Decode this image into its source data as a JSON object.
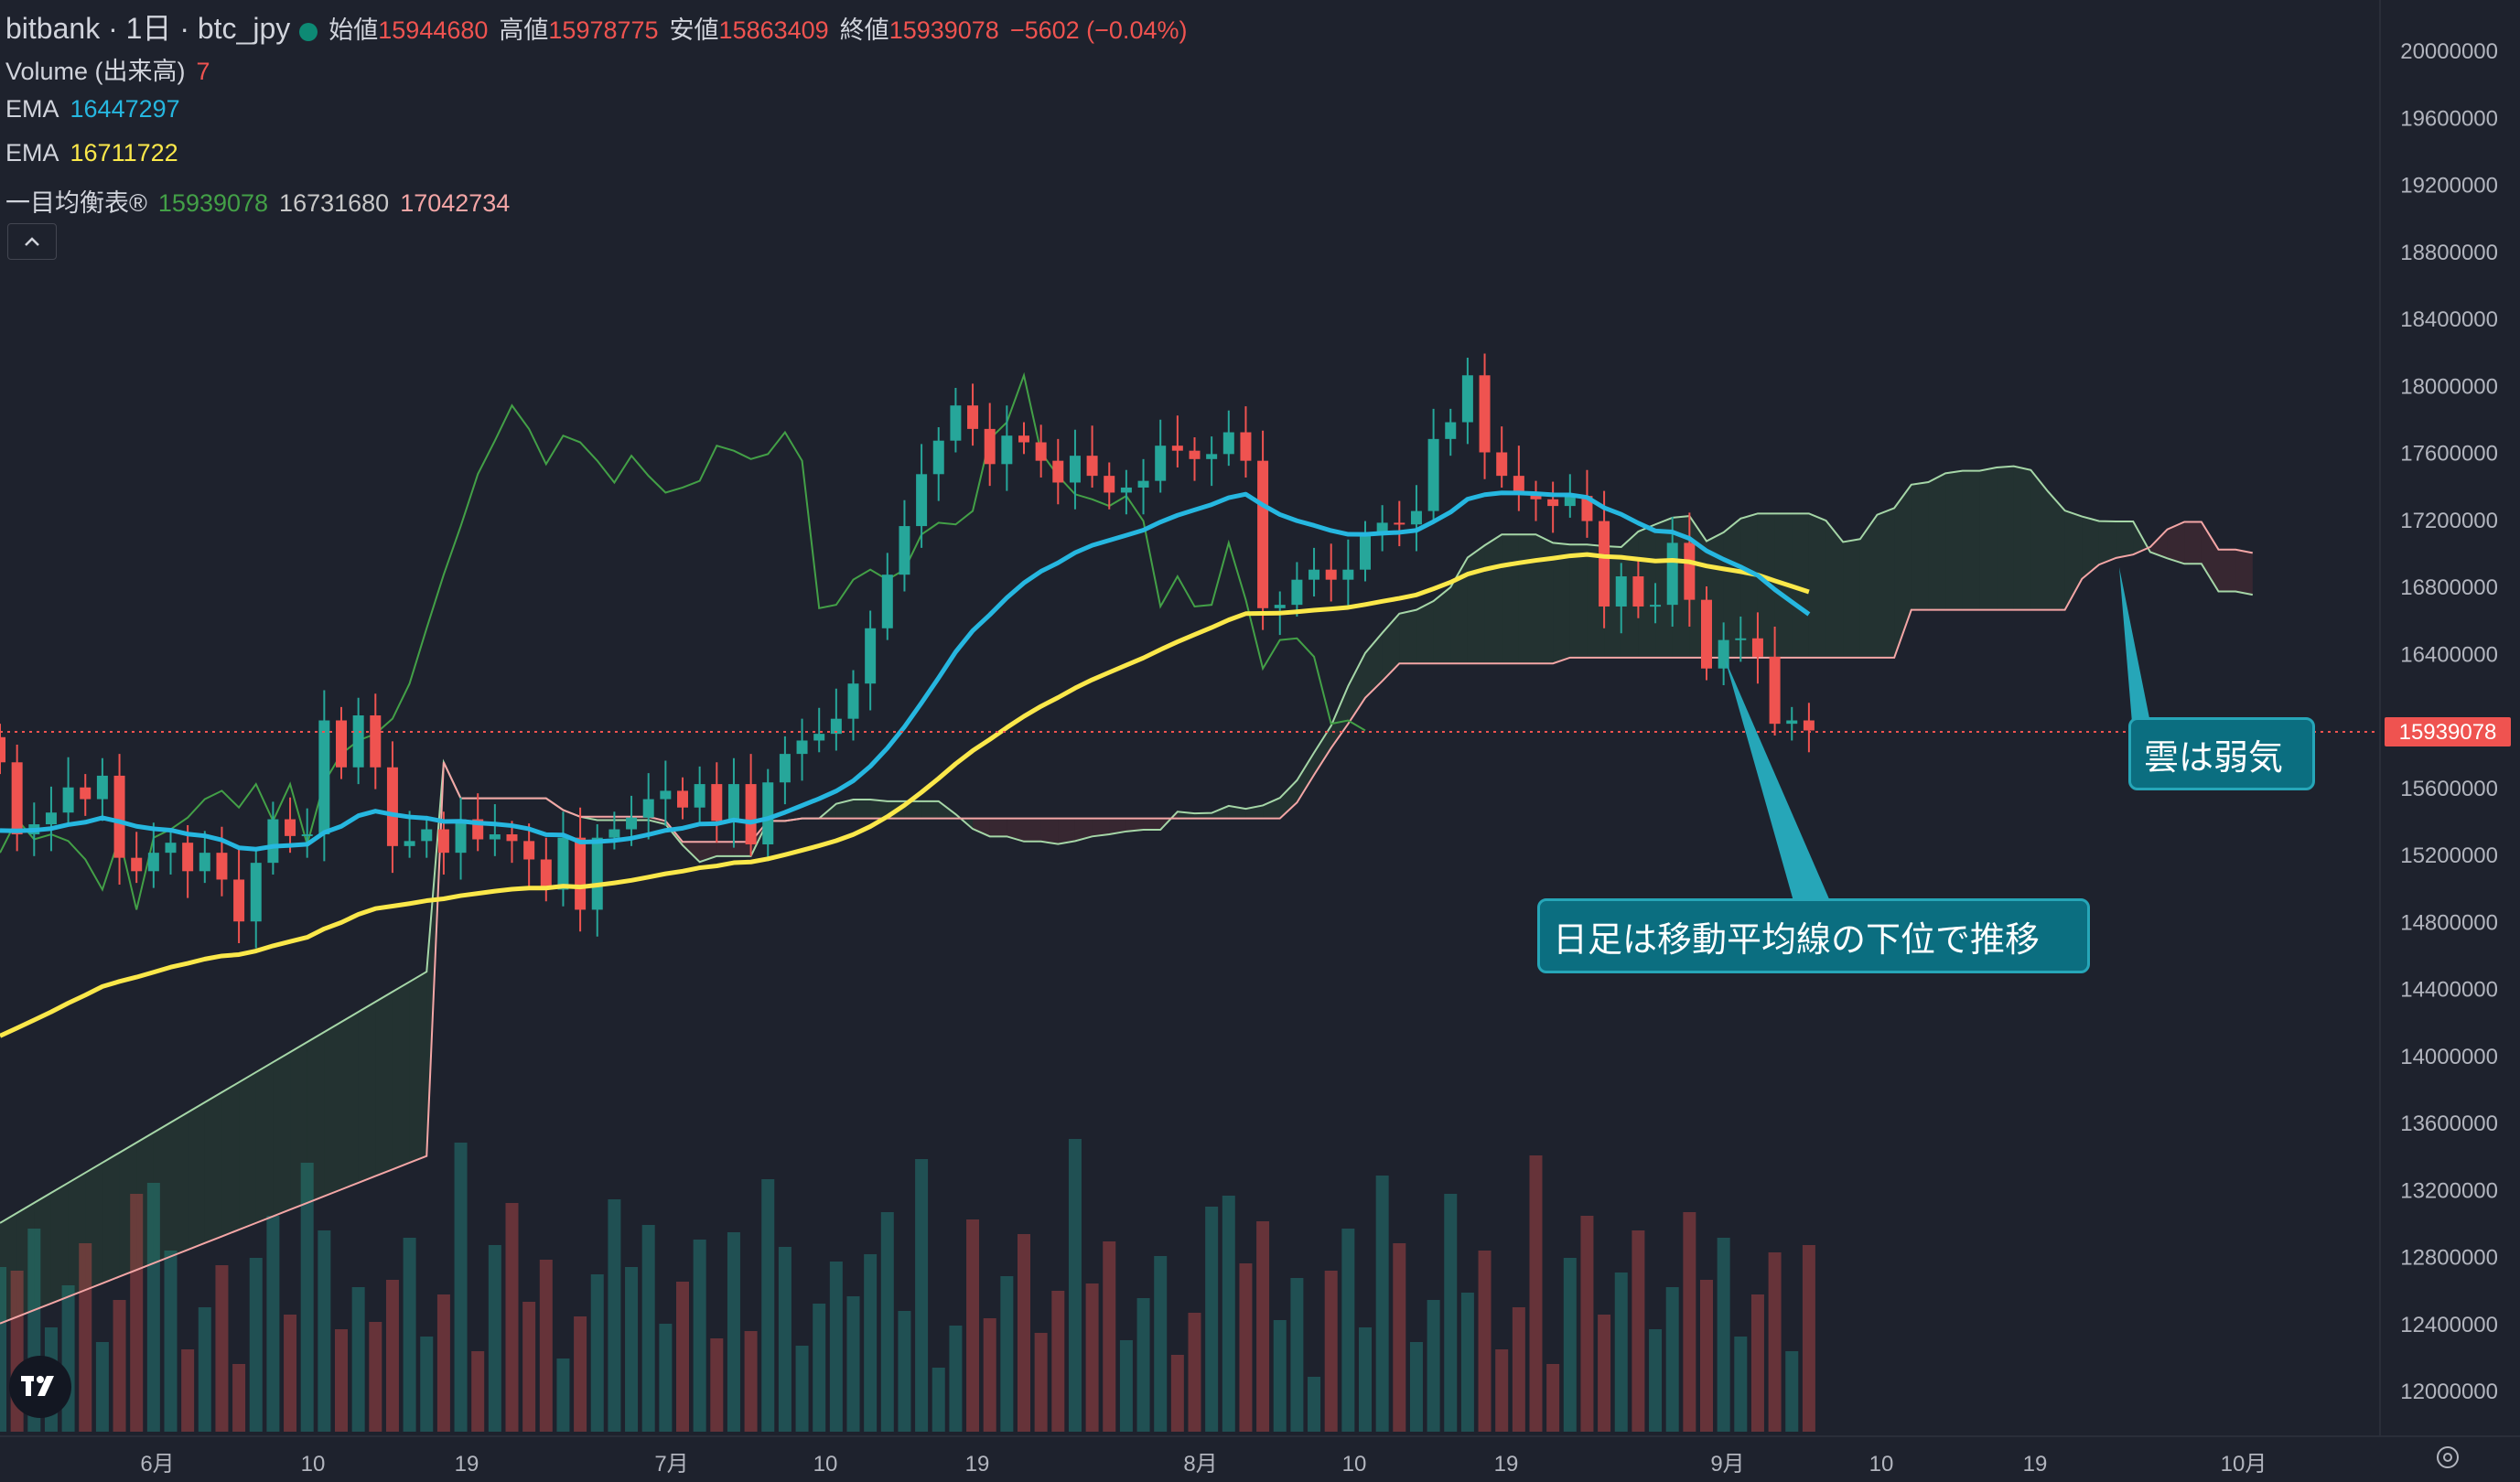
{
  "header": {
    "symbol": "bitbank · 1日 · btc_jpy",
    "open_label": "始値",
    "open": "15944680",
    "high_label": "高値",
    "high": "15978775",
    "low_label": "安値",
    "low": "15863409",
    "close_label": "終値",
    "close": "15939078",
    "change": "−5602 (−0.04%)"
  },
  "indicators": {
    "volume_label": "Volume (出来高)",
    "volume_value": "7",
    "ema1_label": "EMA",
    "ema1_value": "16447297",
    "ema2_label": "EMA",
    "ema2_value": "16711722",
    "ichimoku_label": "一目均衡表®",
    "ichimoku_v1": "15939078",
    "ichimoku_v2": "16731680",
    "ichimoku_v3": "17042734"
  },
  "annotations": {
    "cloud": "雲は弱気",
    "daily": "日足は移動平均線の下位で推移"
  },
  "price_tag": "15939078",
  "colors": {
    "up": "#26a69a",
    "down": "#ef5350",
    "ema_fast": "#26b7e0",
    "ema_slow": "#fbe84a",
    "background": "#1e222d"
  },
  "chart_data": {
    "type": "candlestick",
    "y_ticks": [
      "20000000",
      "19600000",
      "19200000",
      "18800000",
      "18400000",
      "18000000",
      "17600000",
      "17200000",
      "16800000",
      "16400000",
      "16000000",
      "15600000",
      "15200000",
      "14800000",
      "14400000",
      "14000000",
      "13600000",
      "13200000",
      "12800000",
      "12400000",
      "12000000"
    ],
    "x_ticks": [
      "6月",
      "10",
      "19",
      "7月",
      "10",
      "19",
      "8月",
      "10",
      "19",
      "9月",
      "10",
      "19",
      "10月"
    ],
    "ylim": [
      11800000,
      20200000
    ],
    "close": [
      15750000,
      15320000,
      15380000,
      15450000,
      15600000,
      15530000,
      15670000,
      15180000,
      15100000,
      15210000,
      15270000,
      15100000,
      15210000,
      15050000,
      14800000,
      15150000,
      15410000,
      15310000,
      15320000,
      16000000,
      15720000,
      16030000,
      15720000,
      15250000,
      15280000,
      15350000,
      15210000,
      15410000,
      15290000,
      15320000,
      15280000,
      15170000,
      14990000,
      15300000,
      14870000,
      15300000,
      15350000,
      15420000,
      15530000,
      15580000,
      15480000,
      15620000,
      15400000,
      15620000,
      15260000,
      15630000,
      15800000,
      15880000,
      15920000,
      16010000,
      16220000,
      16550000,
      16870000,
      17160000,
      17470000,
      17670000,
      17880000,
      17740000,
      17530000,
      17700000,
      17660000,
      17550000,
      17420000,
      17580000,
      17460000,
      17360000,
      17390000,
      17430000,
      17640000,
      17610000,
      17560000,
      17590000,
      17720000,
      17550000,
      16670000,
      16690000,
      16840000,
      16900000,
      16840000,
      16900000,
      17110000,
      17180000,
      17170000,
      17250000,
      17680000,
      17780000,
      18060000,
      17600000,
      17460000,
      17350000,
      17320000,
      17280000,
      17340000,
      17190000,
      16680000,
      16860000,
      16680000,
      16690000,
      17060000,
      16720000,
      16310000,
      16480000,
      16490000,
      16380000,
      15980000,
      16000000,
      15940000
    ],
    "ema_fast_last": 16447297,
    "ema_slow_last": 16711722,
    "volume_note": "relative daily volume bars"
  }
}
